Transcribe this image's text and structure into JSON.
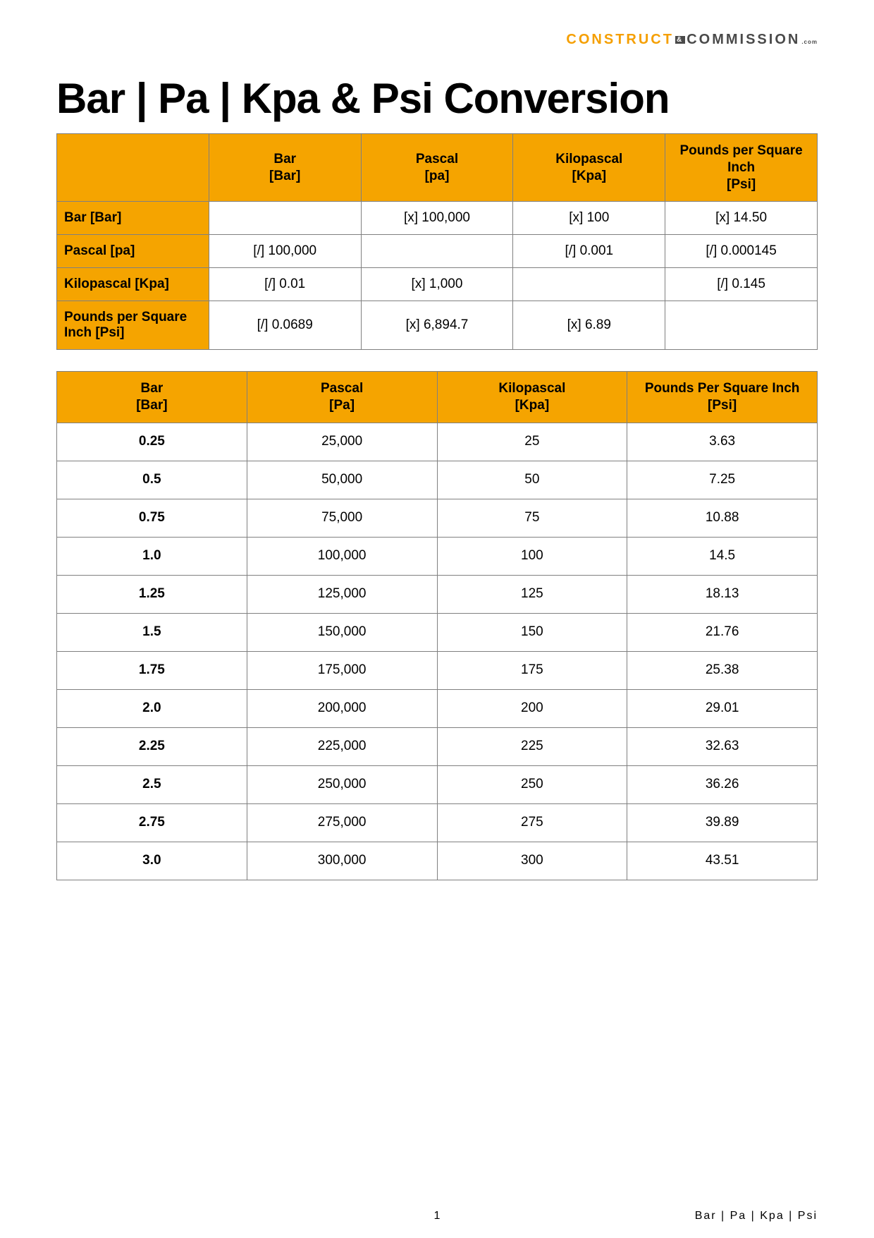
{
  "brand": {
    "left": "CONSTRUCT",
    "right": "COMMISSION",
    "suffix": ".com"
  },
  "page_title": "Bar | Pa | Kpa & Psi Conversion",
  "colors": {
    "header_bg": "#f5a400",
    "border": "#808080",
    "text": "#000000",
    "brand_orange": "#f59f00",
    "brand_grey": "#4a4a4a",
    "background": "#ffffff"
  },
  "factor_table": {
    "col_headers": [
      "Bar\n[Bar]",
      "Pascal\n[pa]",
      "Kilopascal\n[Kpa]",
      "Pounds per Square Inch\n[Psi]"
    ],
    "rows": [
      {
        "label": "Bar [Bar]",
        "cells": [
          "",
          "[x] 100,000",
          "[x] 100",
          "[x] 14.50"
        ]
      },
      {
        "label": "Pascal [pa]",
        "cells": [
          "[/] 100,000",
          "",
          "[/] 0.001",
          "[/] 0.000145"
        ]
      },
      {
        "label": "Kilopascal [Kpa]",
        "cells": [
          "[/] 0.01",
          "[x] 1,000",
          "",
          "[/] 0.145"
        ]
      },
      {
        "label": "Pounds per Square Inch [Psi]",
        "cells": [
          "[/] 0.0689",
          "[x] 6,894.7",
          "[x] 6.89",
          ""
        ]
      }
    ]
  },
  "value_table": {
    "col_headers": [
      "Bar\n[Bar]",
      "Pascal\n[Pa]",
      "Kilopascal\n[Kpa]",
      "Pounds Per Square Inch\n[Psi]"
    ],
    "rows": [
      [
        "0.25",
        "25,000",
        "25",
        "3.63"
      ],
      [
        "0.5",
        "50,000",
        "50",
        "7.25"
      ],
      [
        "0.75",
        "75,000",
        "75",
        "10.88"
      ],
      [
        "1.0",
        "100,000",
        "100",
        "14.5"
      ],
      [
        "1.25",
        "125,000",
        "125",
        "18.13"
      ],
      [
        "1.5",
        "150,000",
        "150",
        "21.76"
      ],
      [
        "1.75",
        "175,000",
        "175",
        "25.38"
      ],
      [
        "2.0",
        "200,000",
        "200",
        "29.01"
      ],
      [
        "2.25",
        "225,000",
        "225",
        "32.63"
      ],
      [
        "2.5",
        "250,000",
        "250",
        "36.26"
      ],
      [
        "2.75",
        "275,000",
        "275",
        "39.89"
      ],
      [
        "3.0",
        "300,000",
        "300",
        "43.51"
      ]
    ]
  },
  "footer": {
    "page_number": "1",
    "category": "Bar | Pa | Kpa | Psi"
  }
}
